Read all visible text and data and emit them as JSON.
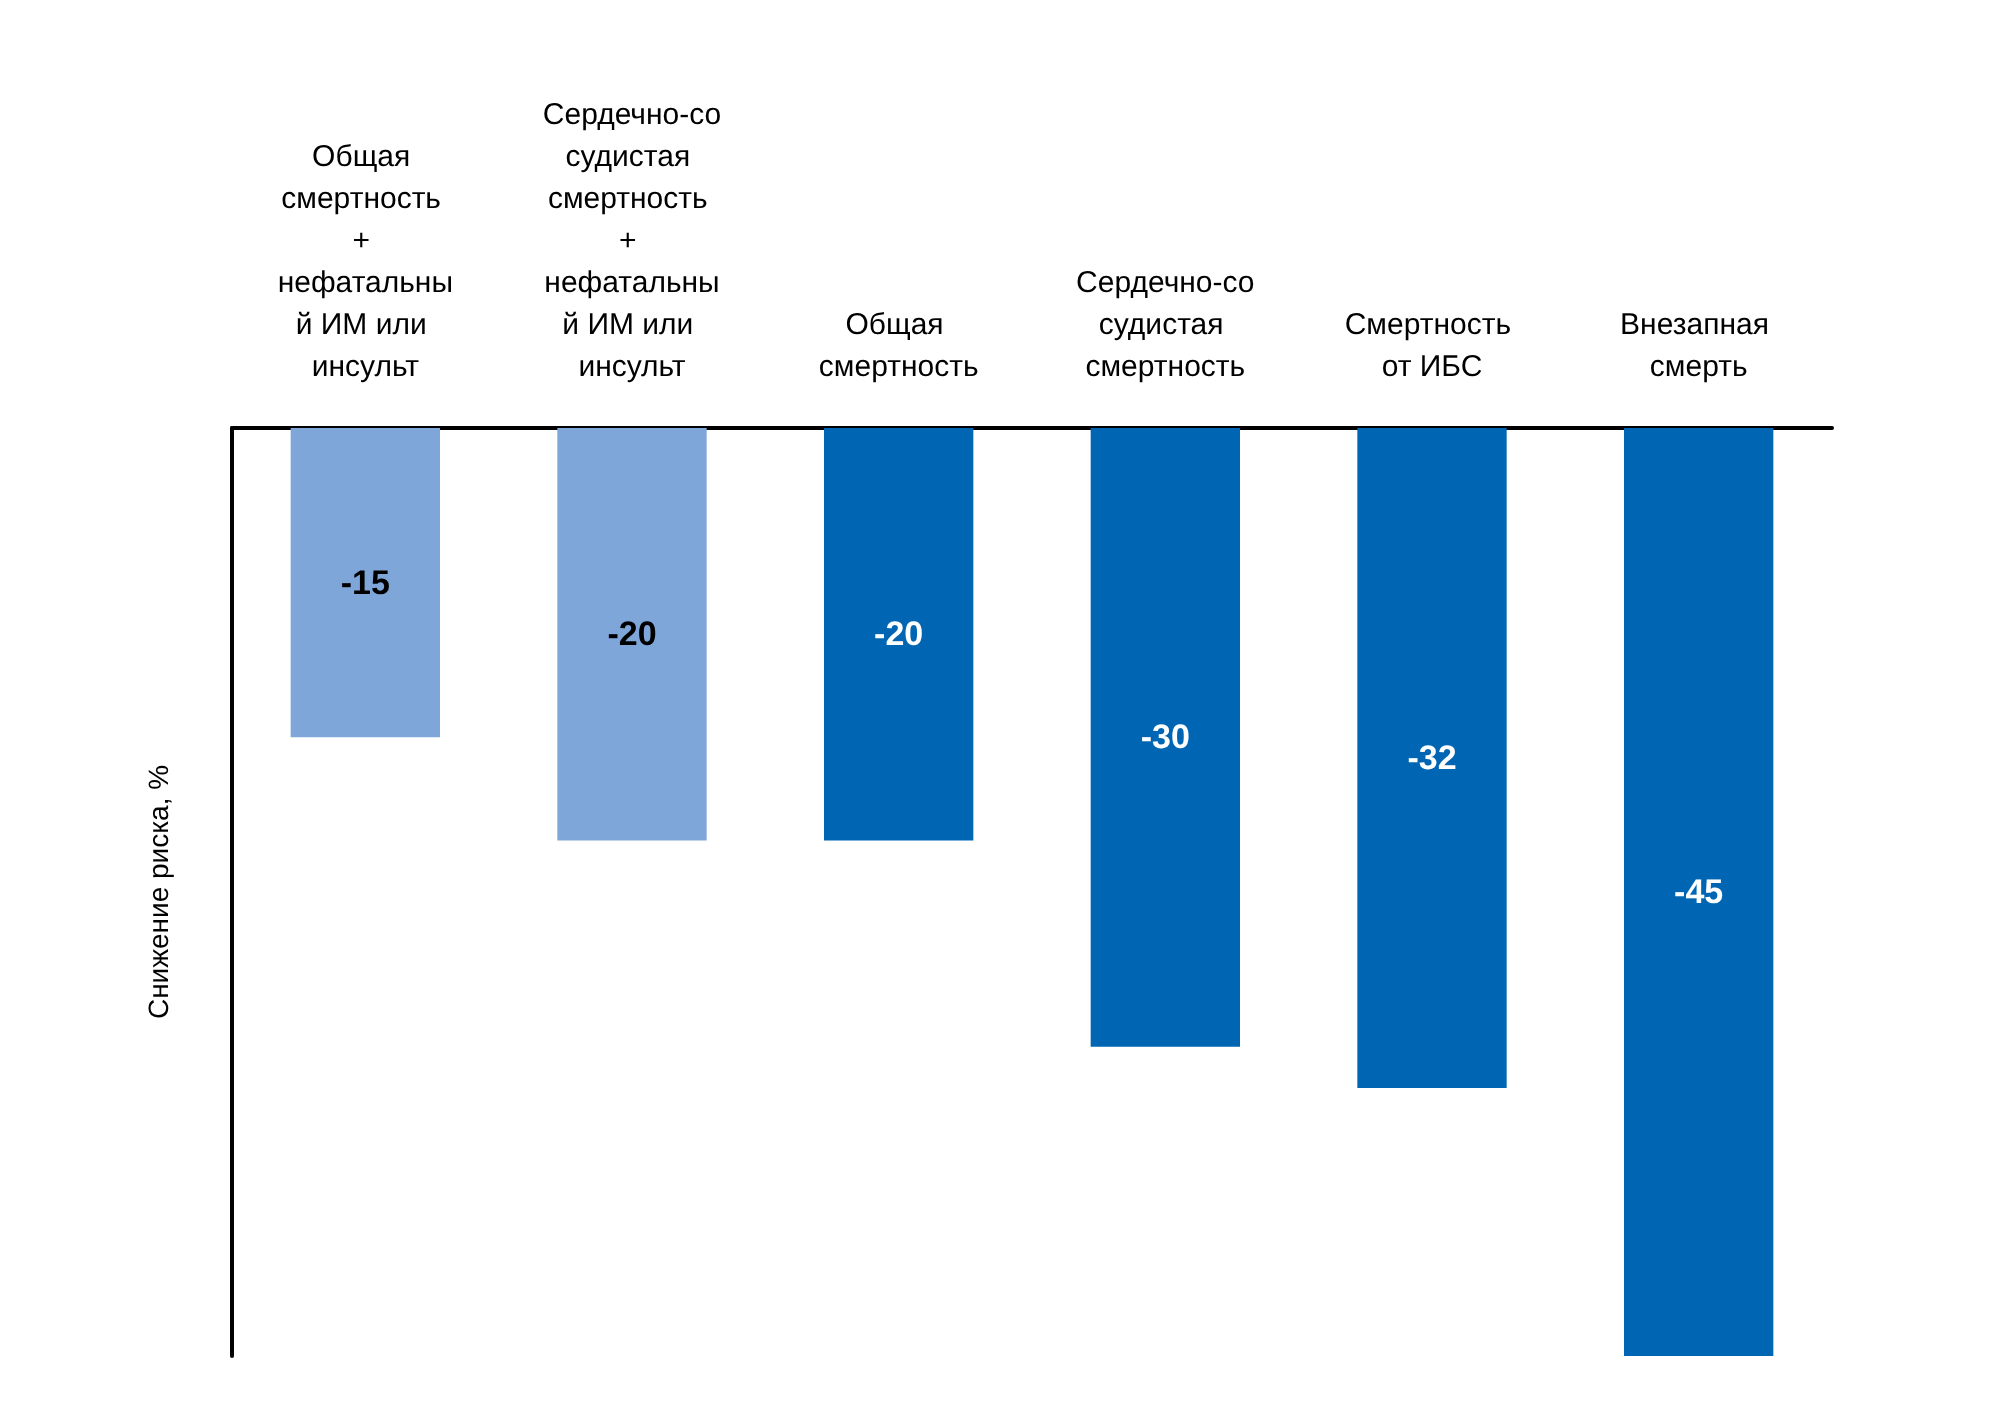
{
  "chart_data": {
    "type": "bar",
    "ylabel": "Снижение риска, %",
    "categories": [
      "Общая смертность + нефатальный ИМ или инсульт",
      "Сердечно-сосудистая смертность + нефатальный ИМ или инсульт",
      "Общая смертность",
      "Сердечно-сосудистая смертность",
      "Смертность от ИБС",
      "Внезапная смерть"
    ],
    "values": [
      -15,
      -20,
      -20,
      -30,
      -32,
      -45
    ],
    "colors": [
      "#7ea6d8",
      "#7ea6d8",
      "#0066b3",
      "#0066b3",
      "#0066b3",
      "#0066b3"
    ],
    "data_labels": true
  }
}
